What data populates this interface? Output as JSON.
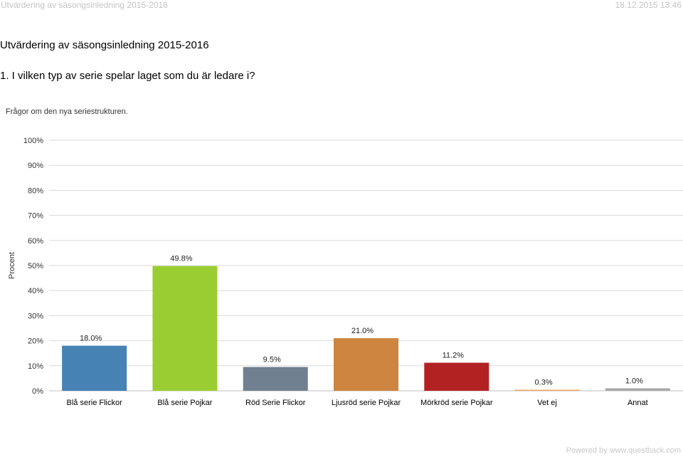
{
  "header": {
    "left_text": "Utvärdering av säsongsinledning 2015-2016",
    "right_text": "18.12.2015 13:46"
  },
  "doc_title": "Utvärdering av säsongsinledning 2015-2016",
  "question": "1. I vilken typ av serie spelar laget som du är ledare i?",
  "subtitle": "Frågor om den nya seriestrukturen.",
  "footer": "Powered by www.questback.com",
  "chart_data": {
    "type": "bar",
    "ylabel": "Procent",
    "ylim": [
      0,
      100
    ],
    "yticks": [
      "0%",
      "10%",
      "20%",
      "30%",
      "40%",
      "50%",
      "60%",
      "70%",
      "80%",
      "90%",
      "100%"
    ],
    "grid": true,
    "categories": [
      "Blå serie Flickor",
      "Blå serie Pojkar",
      "Röd Serie Flickor",
      "Ljusröd serie Pojkar",
      "Mörkröd serie Pojkar",
      "Vet ej",
      "Annat"
    ],
    "values": [
      18.0,
      49.8,
      9.5,
      21.0,
      11.2,
      0.3,
      1.0
    ],
    "data_labels": [
      "18.0%",
      "49.8%",
      "9.5%",
      "21.0%",
      "11.2%",
      "0.3%",
      "1.0%"
    ],
    "colors": [
      "#4682b4",
      "#9acd32",
      "#708090",
      "#cd853f",
      "#b22222",
      "#f4a460",
      "#a9a9a9"
    ]
  }
}
